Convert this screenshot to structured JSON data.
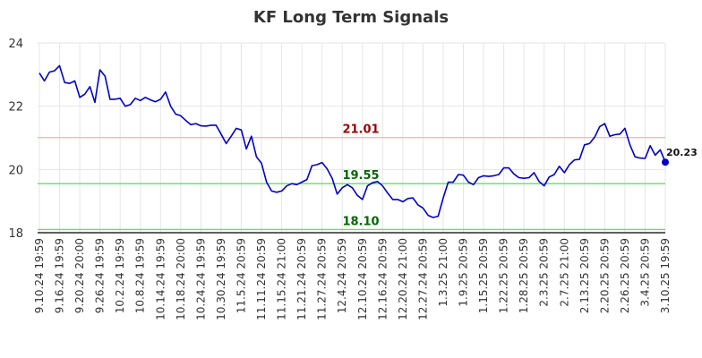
{
  "chart_data": {
    "type": "line",
    "title": "KF Long Term Signals",
    "xlabel": "",
    "ylabel": "",
    "ylim": [
      18,
      24
    ],
    "yticks": [
      "18",
      "20",
      "22",
      "24"
    ],
    "x_tick_labels": [
      "9.10.24 19:59",
      "9.16.24 19:59",
      "9.20.24 20:00",
      "9.26.24 19:59",
      "10.2.24 19:59",
      "10.8.24 19:59",
      "10.14.24 19:59",
      "10.18.24 20:00",
      "10.24.24 19:59",
      "10.30.24 19:59",
      "11.5.24 20:59",
      "11.11.24 20:59",
      "11.15.24 21:00",
      "11.21.24 20:59",
      "11.27.24 20:59",
      "12.4.24 20:59",
      "12.10.24 20:59",
      "12.16.24 20:59",
      "12.20.24 21:00",
      "12.27.24 20:59",
      "1.3.25 21:00",
      "1.9.25 20:59",
      "1.15.25 20:59",
      "1.22.25 20:59",
      "1.28.25 20:59",
      "2.3.25 20:59",
      "2.7.25 21:00",
      "2.13.25 20:59",
      "2.20.25 20:59",
      "2.26.25 20:59",
      "3.4.25 20:59",
      "3.10.25 19:59"
    ],
    "grid": true,
    "series": [
      {
        "color": "#0000cc",
        "values": [
          23.05,
          22.8,
          23.08,
          23.12,
          23.28,
          22.75,
          22.72,
          22.8,
          22.28,
          22.38,
          22.62,
          22.12,
          23.15,
          22.95,
          22.22,
          22.22,
          22.25,
          22.0,
          22.05,
          22.25,
          22.18,
          22.28,
          22.2,
          22.14,
          22.22,
          22.45,
          22.0,
          21.75,
          21.7,
          21.55,
          21.42,
          21.45,
          21.38,
          21.37,
          21.4,
          21.4,
          21.12,
          20.82,
          21.05,
          21.3,
          21.25,
          20.65,
          21.05,
          20.4,
          20.2,
          19.6,
          19.32,
          19.28,
          19.32,
          19.48,
          19.55,
          19.52,
          19.6,
          19.68,
          20.12,
          20.15,
          20.22,
          20.02,
          19.72,
          19.22,
          19.42,
          19.52,
          19.42,
          19.18,
          19.05,
          19.48,
          19.58,
          19.62,
          19.48,
          19.25,
          19.05,
          19.05,
          18.98,
          19.08,
          19.1,
          18.88,
          18.78,
          18.55,
          18.48,
          18.52,
          19.1,
          19.6,
          19.6,
          19.84,
          19.82,
          19.6,
          19.52,
          19.74,
          19.8,
          19.78,
          19.8,
          19.84,
          20.05,
          20.05,
          19.86,
          19.74,
          19.72,
          19.74,
          19.9,
          19.62,
          19.48,
          19.76,
          19.84,
          20.1,
          19.9,
          20.15,
          20.3,
          20.32,
          20.78,
          20.82,
          21.02,
          21.35,
          21.45,
          21.05,
          21.1,
          21.12,
          21.3,
          20.78,
          20.4,
          20.36,
          20.35,
          20.75,
          20.45,
          20.62,
          20.23
        ]
      }
    ],
    "reference_lines": [
      {
        "value": 21.01,
        "label": "21.01",
        "line_color": "#ffb3b3",
        "label_color": "#990000"
      },
      {
        "value": 19.55,
        "label": "19.55",
        "line_color": "#66dd66",
        "label_color": "#006600"
      },
      {
        "value": 18.1,
        "label": "18.10",
        "line_color": "#66dd66",
        "label_color": "#006600"
      }
    ],
    "last_value": 20.23,
    "last_value_label": "20.23",
    "base_line_color": "#000000"
  }
}
